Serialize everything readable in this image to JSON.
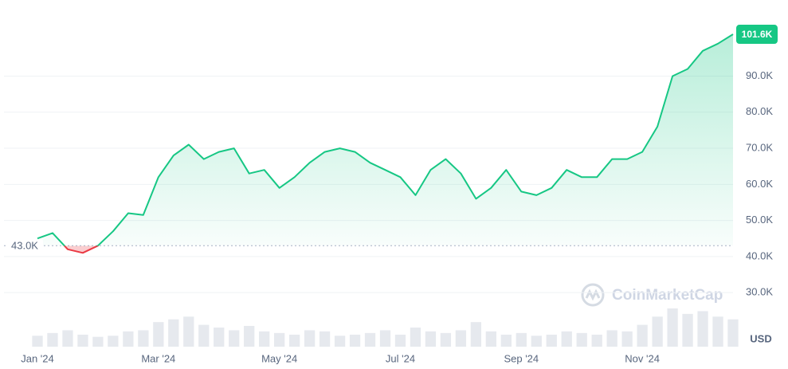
{
  "chart_data": {
    "type": "line",
    "categories": [
      "Jan '24",
      null,
      null,
      null,
      null,
      null,
      null,
      null,
      "Mar '24",
      null,
      null,
      null,
      null,
      null,
      null,
      null,
      "May '24",
      null,
      null,
      null,
      null,
      null,
      null,
      null,
      "Jul '24",
      null,
      null,
      null,
      null,
      null,
      null,
      null,
      "Sep '24",
      null,
      null,
      null,
      null,
      null,
      null,
      null,
      "Nov '24",
      null,
      null,
      null,
      null,
      null,
      null
    ],
    "values": [
      45,
      46.5,
      42,
      41,
      43,
      47,
      52,
      51.5,
      62,
      68,
      71,
      67,
      69,
      70,
      63,
      64,
      59,
      62,
      66,
      69,
      70,
      69,
      66,
      64,
      62,
      57,
      64,
      67,
      63,
      56,
      59,
      64,
      58,
      57,
      59,
      64,
      62,
      62,
      67,
      67,
      69,
      76,
      90,
      92,
      97,
      99,
      101.6
    ],
    "volume": [
      20,
      25,
      30,
      22,
      18,
      20,
      28,
      30,
      45,
      50,
      55,
      40,
      35,
      30,
      38,
      28,
      25,
      22,
      30,
      28,
      20,
      22,
      25,
      30,
      22,
      35,
      28,
      25,
      30,
      45,
      28,
      22,
      25,
      20,
      22,
      28,
      25,
      22,
      30,
      28,
      40,
      55,
      70,
      60,
      65,
      55,
      50
    ],
    "up_color": "#16c784",
    "down_color": "#ea3943",
    "baseline": 43.0,
    "baseline_label": "43.0K",
    "last_value_label": "101.6K",
    "unit_label": "USD",
    "watermark": "CoinMarketCap",
    "ylim": [
      15,
      110
    ],
    "yticks": [
      {
        "value": 30,
        "label": "30.0K"
      },
      {
        "value": 40,
        "label": "40.0K"
      },
      {
        "value": 50,
        "label": "50.0K"
      },
      {
        "value": 60,
        "label": "60.0K"
      },
      {
        "value": 70,
        "label": "70.0K"
      },
      {
        "value": 80,
        "label": "80.0K"
      },
      {
        "value": 90,
        "label": "90.0K"
      }
    ],
    "grid": true
  }
}
